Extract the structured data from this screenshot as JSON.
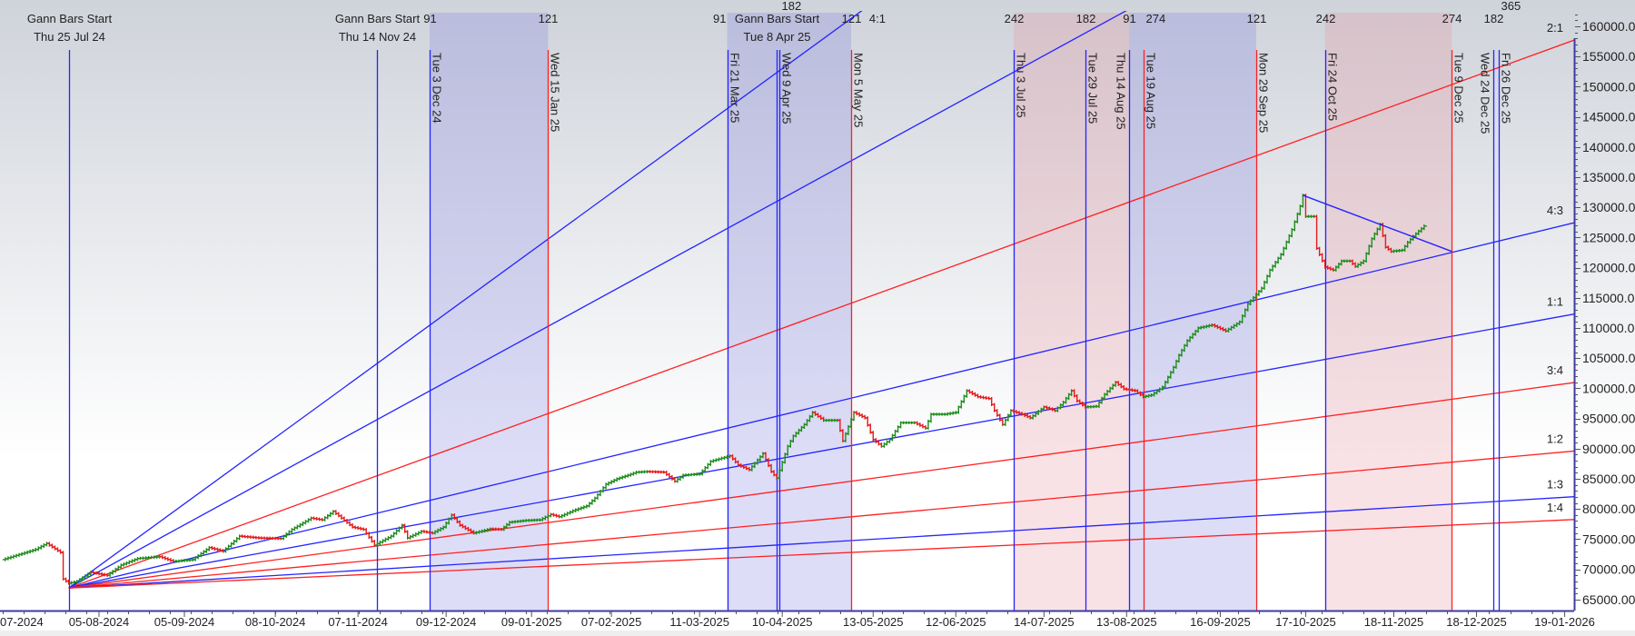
{
  "chart_data": {
    "type": "line",
    "style": "ohlc-bars",
    "title": "",
    "xlabel": "",
    "ylabel": "",
    "ylim": [
      65000,
      160000
    ],
    "y_ticks": [
      "65000.00",
      "70000.00",
      "75000.00",
      "80000.00",
      "85000.00",
      "90000.00",
      "95000.00",
      "100000.00",
      "105000.00",
      "110000.00",
      "115000.00",
      "120000.00",
      "125000.00",
      "130000.00",
      "135000.00",
      "140000.00",
      "145000.00",
      "150000.00",
      "155000.00",
      "160000.00"
    ],
    "x_ticks": [
      "07-2024",
      "05-08-2024",
      "05-09-2024",
      "08-10-2024",
      "07-11-2024",
      "09-12-2024",
      "09-01-2025",
      "07-02-2025",
      "11-03-2025",
      "10-04-2025",
      "13-05-2025",
      "12-06-2025",
      "14-07-2025",
      "13-08-2025",
      "16-09-2025",
      "17-10-2025",
      "18-11-2025",
      "18-12-2025",
      "19-01-2026"
    ],
    "grid": false,
    "colors": {
      "up": "#1e8c1e",
      "down": "#e41b1b",
      "blue_line": "#2424ff",
      "red_line": "#ff2020",
      "blue_band": "#7878e0",
      "red_band": "#e88c96",
      "axis": "#3c3ca0"
    },
    "series": [
      {
        "points": [
          [
            "2024-07-01",
            71600
          ],
          [
            "2024-07-13",
            73300
          ],
          [
            "2024-07-17",
            74300
          ],
          [
            "2024-07-22",
            72800
          ],
          [
            "2024-07-23",
            68400
          ],
          [
            "2024-07-25",
            67700
          ],
          [
            "2024-07-28",
            68000
          ],
          [
            "2024-08-02",
            69500
          ],
          [
            "2024-08-08",
            69000
          ],
          [
            "2024-08-13",
            70700
          ],
          [
            "2024-08-19",
            71800
          ],
          [
            "2024-08-27",
            72100
          ],
          [
            "2024-09-01",
            71300
          ],
          [
            "2024-09-08",
            71600
          ],
          [
            "2024-09-14",
            73600
          ],
          [
            "2024-09-19",
            73000
          ],
          [
            "2024-09-25",
            75500
          ],
          [
            "2024-10-02",
            75200
          ],
          [
            "2024-10-10",
            75100
          ],
          [
            "2024-10-14",
            76600
          ],
          [
            "2024-10-21",
            78500
          ],
          [
            "2024-10-25",
            78200
          ],
          [
            "2024-10-29",
            79600
          ],
          [
            "2024-11-01",
            78500
          ],
          [
            "2024-11-05",
            77000
          ],
          [
            "2024-11-09",
            76600
          ],
          [
            "2024-11-13",
            74000
          ],
          [
            "2024-11-19",
            75500
          ],
          [
            "2024-11-23",
            77300
          ],
          [
            "2024-11-25",
            75200
          ],
          [
            "2024-11-30",
            76300
          ],
          [
            "2024-12-04",
            76000
          ],
          [
            "2024-12-08",
            77000
          ],
          [
            "2024-12-11",
            79000
          ],
          [
            "2024-12-14",
            77300
          ],
          [
            "2024-12-19",
            76000
          ],
          [
            "2024-12-25",
            76700
          ],
          [
            "2024-12-29",
            76600
          ],
          [
            "2025-01-01",
            77800
          ],
          [
            "2025-01-07",
            78100
          ],
          [
            "2025-01-12",
            78200
          ],
          [
            "2025-01-16",
            79100
          ],
          [
            "2025-01-19",
            78700
          ],
          [
            "2025-01-24",
            79700
          ],
          [
            "2025-01-29",
            80500
          ],
          [
            "2025-02-01",
            81800
          ],
          [
            "2025-02-05",
            84100
          ],
          [
            "2025-02-09",
            85000
          ],
          [
            "2025-02-13",
            85600
          ],
          [
            "2025-02-16",
            86100
          ],
          [
            "2025-02-20",
            86200
          ],
          [
            "2025-02-26",
            86100
          ],
          [
            "2025-03-02",
            84600
          ],
          [
            "2025-03-05",
            85600
          ],
          [
            "2025-03-11",
            85800
          ],
          [
            "2025-03-15",
            87900
          ],
          [
            "2025-03-22",
            88800
          ],
          [
            "2025-03-25",
            87300
          ],
          [
            "2025-03-29",
            86500
          ],
          [
            "2025-04-03",
            89200
          ],
          [
            "2025-04-06",
            86200
          ],
          [
            "2025-04-08",
            85100
          ],
          [
            "2025-04-12",
            90400
          ],
          [
            "2025-04-14",
            92100
          ],
          [
            "2025-04-18",
            94000
          ],
          [
            "2025-04-21",
            96000
          ],
          [
            "2025-04-25",
            94700
          ],
          [
            "2025-04-30",
            94700
          ],
          [
            "2025-05-02",
            91300
          ],
          [
            "2025-05-06",
            96000
          ],
          [
            "2025-05-10",
            95100
          ],
          [
            "2025-05-13",
            91500
          ],
          [
            "2025-05-16",
            90400
          ],
          [
            "2025-05-19",
            91500
          ],
          [
            "2025-05-23",
            94300
          ],
          [
            "2025-05-28",
            94300
          ],
          [
            "2025-06-01",
            93400
          ],
          [
            "2025-06-03",
            95700
          ],
          [
            "2025-06-08",
            95700
          ],
          [
            "2025-06-12",
            96000
          ],
          [
            "2025-06-16",
            99600
          ],
          [
            "2025-06-20",
            98600
          ],
          [
            "2025-06-24",
            98300
          ],
          [
            "2025-06-26",
            96300
          ],
          [
            "2025-06-29",
            94000
          ],
          [
            "2025-07-02",
            96300
          ],
          [
            "2025-07-06",
            95700
          ],
          [
            "2025-07-09",
            95100
          ],
          [
            "2025-07-14",
            96900
          ],
          [
            "2025-07-18",
            96300
          ],
          [
            "2025-07-21",
            97700
          ],
          [
            "2025-07-24",
            99600
          ],
          [
            "2025-07-26",
            97900
          ],
          [
            "2025-07-29",
            96900
          ],
          [
            "2025-08-02",
            97000
          ],
          [
            "2025-08-05",
            99000
          ],
          [
            "2025-08-09",
            101000
          ],
          [
            "2025-08-12",
            99900
          ],
          [
            "2025-08-16",
            99600
          ],
          [
            "2025-08-19",
            98600
          ],
          [
            "2025-08-22",
            98900
          ],
          [
            "2025-08-26",
            100200
          ],
          [
            "2025-08-30",
            103500
          ],
          [
            "2025-09-01",
            105500
          ],
          [
            "2025-09-04",
            107900
          ],
          [
            "2025-09-08",
            110000
          ],
          [
            "2025-09-13",
            110500
          ],
          [
            "2025-09-18",
            109500
          ],
          [
            "2025-09-23",
            111000
          ],
          [
            "2025-09-26",
            114000
          ],
          [
            "2025-10-01",
            116600
          ],
          [
            "2025-10-04",
            119600
          ],
          [
            "2025-10-08",
            122200
          ],
          [
            "2025-10-12",
            126300
          ],
          [
            "2025-10-15",
            130200
          ],
          [
            "2025-10-16",
            132000
          ],
          [
            "2025-10-17",
            128500
          ],
          [
            "2025-10-20",
            128500
          ],
          [
            "2025-10-21",
            123200
          ],
          [
            "2025-10-24",
            120100
          ],
          [
            "2025-10-27",
            119600
          ],
          [
            "2025-10-30",
            121100
          ],
          [
            "2025-11-02",
            121100
          ],
          [
            "2025-11-04",
            120200
          ],
          [
            "2025-11-07",
            121100
          ],
          [
            "2025-11-10",
            124800
          ],
          [
            "2025-11-13",
            127200
          ],
          [
            "2025-11-15",
            123400
          ],
          [
            "2025-11-17",
            122700
          ],
          [
            "2025-11-21",
            122900
          ],
          [
            "2025-11-23",
            124200
          ],
          [
            "2025-11-25",
            125200
          ],
          [
            "2025-11-29",
            126900
          ]
        ]
      }
    ],
    "gann_fan": {
      "origin_date": "2024-07-25",
      "origin_price": 66900,
      "price_per_day_1x1": 83.1,
      "lines": [
        {
          "ratio": 4,
          "label": "4:1",
          "color": "blue",
          "label_at": "top"
        },
        {
          "ratio": 3,
          "label": "",
          "color": "blue",
          "label_at": "top"
        },
        {
          "ratio": 2,
          "label": "2:1",
          "color": "red",
          "label_at": "right"
        },
        {
          "ratio": 1.3333,
          "label": "4:3",
          "color": "blue",
          "label_at": "right"
        },
        {
          "ratio": 1,
          "label": "1:1",
          "color": "blue",
          "label_at": "right"
        },
        {
          "ratio": 0.75,
          "label": "3:4",
          "color": "red",
          "label_at": "right"
        },
        {
          "ratio": 0.5,
          "label": "1:2",
          "color": "red",
          "label_at": "right"
        },
        {
          "ratio": 0.3333,
          "label": "1:3",
          "color": "blue",
          "label_at": "right"
        },
        {
          "ratio": 0.25,
          "label": "1:4",
          "color": "red",
          "label_at": "right"
        }
      ]
    },
    "trendlines": [
      {
        "from": [
          "2025-10-16",
          132000
        ],
        "to": [
          "2025-12-09",
          122700
        ],
        "color": "blue"
      }
    ],
    "bands": [
      {
        "from": "2024-12-03",
        "to": "2025-01-15",
        "color": "blue"
      },
      {
        "from": "2025-03-21",
        "to": "2025-05-05",
        "color": "blue"
      },
      {
        "from": "2025-07-03",
        "to": "2025-08-14",
        "color": "red"
      },
      {
        "from": "2025-08-14",
        "to": "2025-09-29",
        "color": "blue"
      },
      {
        "from": "2025-10-24",
        "to": "2025-12-09",
        "color": "red"
      }
    ],
    "vertical_lines": [
      {
        "date": "2024-07-25",
        "color": "blue",
        "title": "Gann Bars Start",
        "label": "Thu 25 Jul 24",
        "count": ""
      },
      {
        "date": "2024-11-14",
        "color": "blue",
        "title": "Gann Bars Start",
        "label": "Thu 14 Nov 24",
        "count": ""
      },
      {
        "date": "2024-12-03",
        "color": "blue",
        "title": "",
        "label": "Tue 3 Dec 24",
        "count": "91"
      },
      {
        "date": "2025-01-15",
        "color": "red",
        "title": "",
        "label": "Wed 15 Jan 25",
        "count": "121"
      },
      {
        "date": "2025-03-21",
        "color": "blue",
        "title": "",
        "label": "Fri 21 Mar 25",
        "count": "91"
      },
      {
        "date": "2025-04-08",
        "color": "blue",
        "title": "Gann Bars Start",
        "label": "Tue 8 Apr 25",
        "count": ""
      },
      {
        "date": "2025-04-09",
        "color": "blue",
        "title": "",
        "label": "Wed 9 Apr 25",
        "count": "182"
      },
      {
        "date": "2025-05-05",
        "color": "red",
        "title": "",
        "label": "Mon 5 May 25",
        "count": "121"
      },
      {
        "date": "2025-07-03",
        "color": "blue",
        "title": "",
        "label": "Thu 3 Jul 25",
        "count": "242"
      },
      {
        "date": "2025-07-29",
        "color": "blue",
        "title": "",
        "label": "Tue 29 Jul 25",
        "count": "182"
      },
      {
        "date": "2025-08-14",
        "color": "blue",
        "title": "",
        "label": "Thu 14 Aug 25",
        "count": "91"
      },
      {
        "date": "2025-08-19",
        "color": "red",
        "title": "",
        "label": "Tue 19 Aug 25",
        "count": "274"
      },
      {
        "date": "2025-09-29",
        "color": "red",
        "title": "",
        "label": "Mon 29 Sep 25",
        "count": "121"
      },
      {
        "date": "2025-10-24",
        "color": "blue",
        "title": "",
        "label": "Fri 24 Oct 25",
        "count": "242"
      },
      {
        "date": "2025-12-09",
        "color": "red",
        "title": "",
        "label": "Tue 9 Dec 25",
        "count": "274"
      },
      {
        "date": "2025-12-24",
        "color": "blue",
        "title": "",
        "label": "Wed 24 Dec 25",
        "count": "182"
      },
      {
        "date": "2025-12-26",
        "color": "blue",
        "title": "",
        "label": "Fri 26 Dec 25",
        "count": "365"
      }
    ]
  }
}
